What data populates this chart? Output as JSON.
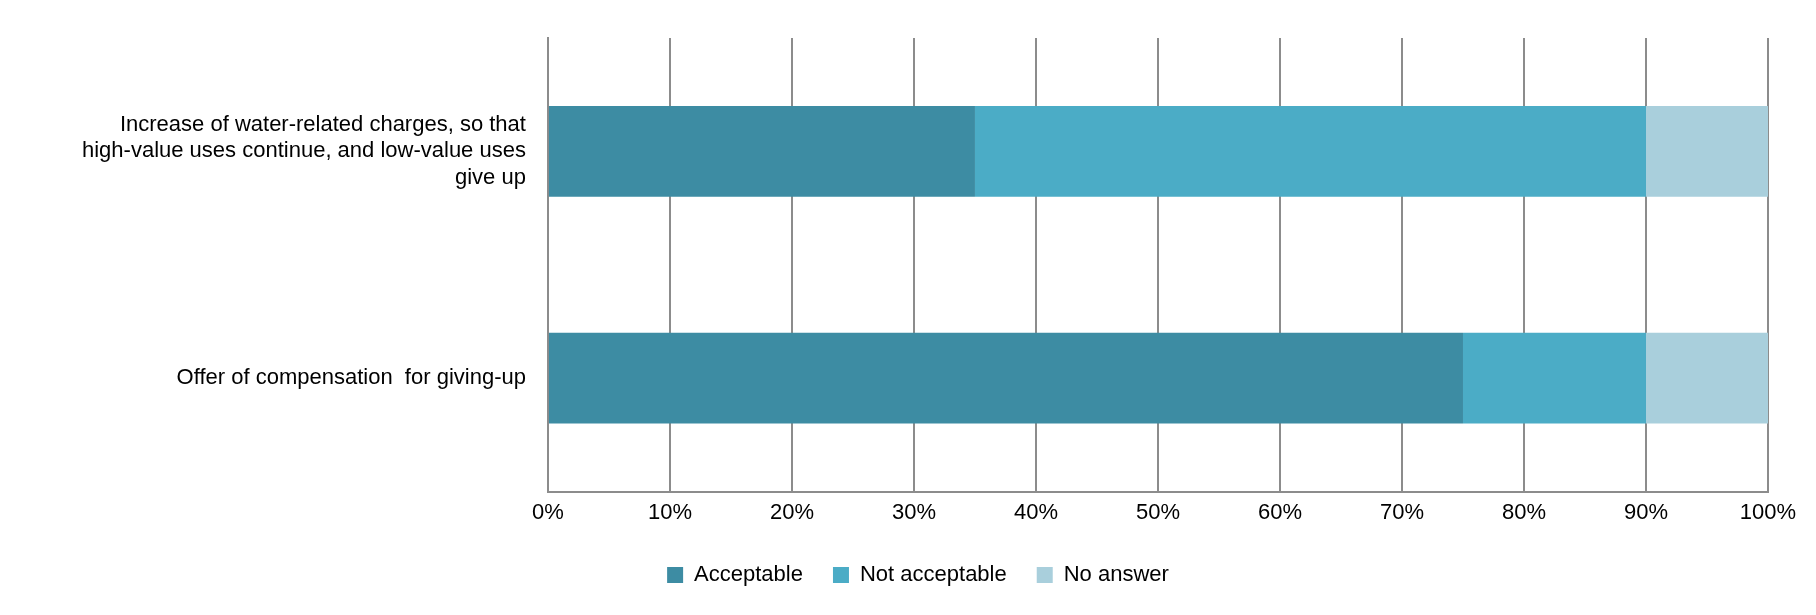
{
  "chart_data": {
    "type": "bar",
    "orientation": "horizontal",
    "stacked": true,
    "categories": [
      "Increase of water-related charges, so that high-value uses continue, and low-value uses give up",
      "Offer of compensation  for giving-up"
    ],
    "series": [
      {
        "name": "Acceptable",
        "color": "#3d8ca3",
        "values": [
          35,
          75
        ]
      },
      {
        "name": "Not acceptable",
        "color": "#4bacc6",
        "values": [
          55,
          15
        ]
      },
      {
        "name": "No answer",
        "color": "#a9cfdc",
        "values": [
          10,
          10
        ]
      }
    ],
    "xlim": [
      0,
      100
    ],
    "xticks": [
      {
        "value": 0,
        "label": "0%"
      },
      {
        "value": 10,
        "label": "10%"
      },
      {
        "value": 20,
        "label": "20%"
      },
      {
        "value": 30,
        "label": "30%"
      },
      {
        "value": 40,
        "label": "40%"
      },
      {
        "value": 50,
        "label": "50%"
      },
      {
        "value": 60,
        "label": "60%"
      },
      {
        "value": 70,
        "label": "70%"
      },
      {
        "value": 80,
        "label": "80%"
      },
      {
        "value": 90,
        "label": "90%"
      },
      {
        "value": 100,
        "label": "100%"
      }
    ],
    "grid": "x",
    "legend": "bottom"
  }
}
